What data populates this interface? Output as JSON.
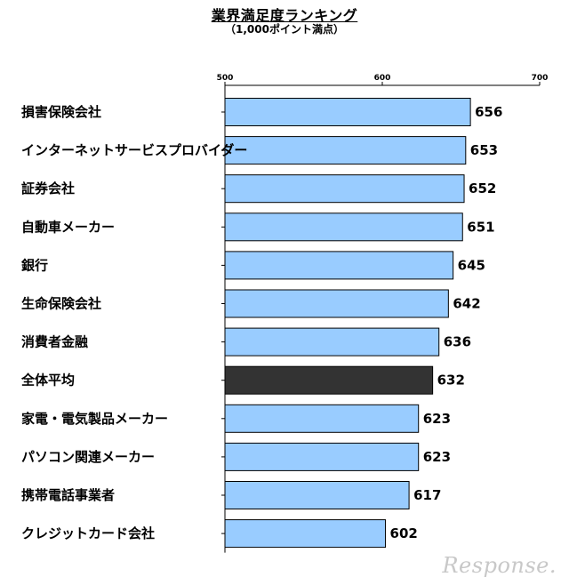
{
  "chart_data": {
    "type": "bar",
    "orientation": "horizontal",
    "title": "業界満足度ランキング",
    "subtitle": "（1,000ポイント満点）",
    "categories": [
      "損害保険会社",
      "インターネットサービスプロバイダー",
      "証券会社",
      "自動車メーカー",
      "銀行",
      "生命保険会社",
      "消費者金融",
      "全体平均",
      "家電・電気製品メーカー",
      "パソコン関連メーカー",
      "携帯電話事業者",
      "クレジットカード会社"
    ],
    "values": [
      656,
      653,
      652,
      651,
      645,
      642,
      636,
      632,
      623,
      623,
      617,
      602
    ],
    "highlight_category": "全体平均",
    "xlim": [
      500,
      700
    ],
    "xticks": [
      500,
      600,
      700
    ],
    "xtick_labels": [
      "500",
      "600",
      "700"
    ],
    "tick_position": "top",
    "grid": false,
    "legend": "none",
    "colors": {
      "bar": "#99ccff",
      "highlight_bar": "#333333",
      "bar_border": "#000000"
    }
  },
  "watermark": "Response."
}
